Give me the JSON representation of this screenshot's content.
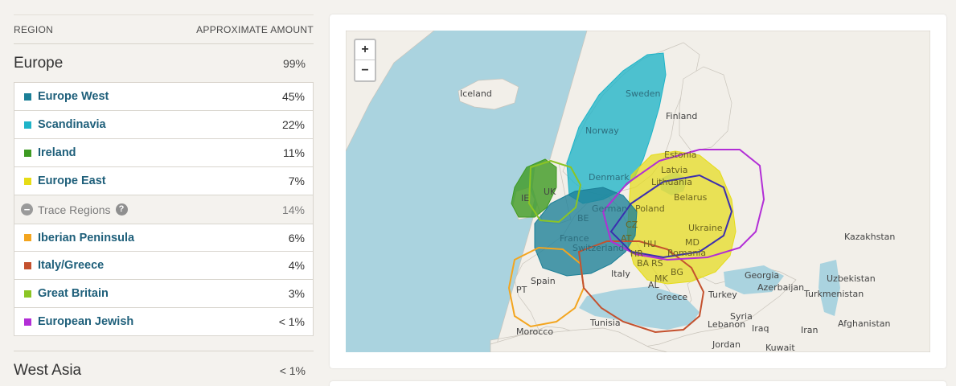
{
  "table": {
    "header_region": "REGION",
    "header_amount": "APPROXIMATE AMOUNT",
    "europe": {
      "label": "Europe",
      "value": "99%"
    },
    "regions": [
      {
        "name": "Europe West",
        "value": "45%",
        "color": "#1b7f97"
      },
      {
        "name": "Scandinavia",
        "value": "22%",
        "color": "#1fb4c8"
      },
      {
        "name": "Ireland",
        "value": "11%",
        "color": "#3d9a22"
      },
      {
        "name": "Europe East",
        "value": "7%",
        "color": "#e6dc16"
      }
    ],
    "trace": {
      "label": "Trace Regions",
      "value": "14%",
      "minus_icon": "minus-circle-icon",
      "help_icon": "question-circle-icon"
    },
    "trace_regions": [
      {
        "name": "Iberian Peninsula",
        "value": "6%",
        "color": "#f3a51f"
      },
      {
        "name": "Italy/Greece",
        "value": "4%",
        "color": "#c4512e"
      },
      {
        "name": "Great Britain",
        "value": "3%",
        "color": "#8bc524"
      },
      {
        "name": "European Jewish",
        "value": "< 1%",
        "color": "#b22ed6"
      }
    ],
    "west_asia": {
      "label": "West Asia",
      "value": "< 1%"
    }
  },
  "map": {
    "zoom_in": "+",
    "zoom_out": "−",
    "labels": {
      "iceland": "Iceland",
      "sweden": "Sweden",
      "finland": "Finland",
      "norway": "Norway",
      "estonia": "Estonia",
      "latvia": "Latvia",
      "lithuania": "Lithuania",
      "denmark": "Denmark",
      "belarus": "Belarus",
      "ie": "IE",
      "uk": "UK",
      "be": "BE",
      "german": "German",
      "poland": "Poland",
      "cz": "CZ",
      "ukraine": "Ukraine",
      "france": "France",
      "switzerland": "Switzerland",
      "at": "AT",
      "hu": "HU",
      "md": "MD",
      "hr": "HR",
      "romania": "Romania",
      "ba": "BA",
      "rs": "RS",
      "kazakhstan": "Kazakhstan",
      "spain": "Spain",
      "italy": "Italy",
      "bg": "BG",
      "georgia": "Georgia",
      "uzbekistan": "Uzbekistan",
      "pt": "PT",
      "mk": "MK",
      "al": "AL",
      "azerbaijan": "Azerbaijan",
      "turkmenistan": "Turkmenistan",
      "greece": "Greece",
      "turkey": "Turkey",
      "syria": "Syria",
      "tunisia": "Tunisia",
      "lebanon": "Lebanon",
      "iraq": "Iraq",
      "iran": "Iran",
      "afghanistan": "Afghanistan",
      "morocco": "Morocco",
      "jordan": "Jordan",
      "kuwait": "Kuwait"
    }
  }
}
